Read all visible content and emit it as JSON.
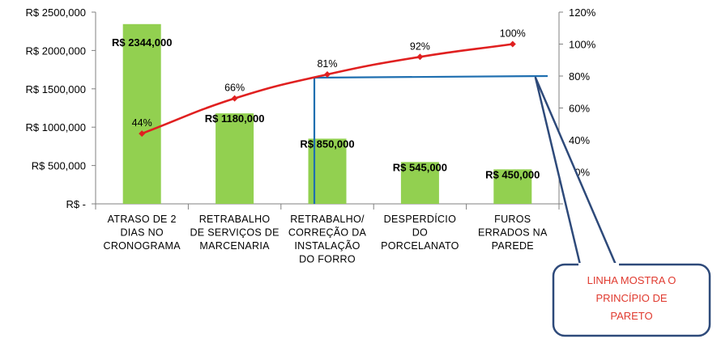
{
  "chart_data": {
    "type": "bar",
    "title": "",
    "xlabel": "",
    "ylabel": "",
    "categories": [
      [
        "ATRASO DE 2",
        "DIAS NO",
        "CRONOGRAMA"
      ],
      [
        "RETRABALHO",
        "DE SERVIÇOS DE",
        "MARCENARIA"
      ],
      [
        "RETRABALHO/",
        "CORREÇÃO DA",
        "INSTALAÇÃO",
        "DO FORRO"
      ],
      [
        "DESPERDÍCIO",
        "DO",
        "PORCELANATO"
      ],
      [
        "FUROS",
        "ERRADOS NA",
        "PAREDE"
      ]
    ],
    "series": [
      {
        "type": "bar",
        "values": [
          2344000,
          1180000,
          850000,
          545000,
          450000
        ],
        "data_labels": [
          "R$ 2344,000",
          "R$ 1180,000",
          "R$ 850,000",
          "R$ 545,000",
          "R$ 450,000"
        ],
        "color": "#92d050"
      },
      {
        "type": "line",
        "axis": "secondary",
        "values": [
          44,
          66,
          81,
          92,
          100
        ],
        "data_labels": [
          "44%",
          "66%",
          "81%",
          "92%",
          "100%"
        ],
        "color": "#e02020"
      }
    ],
    "pareto_line": {
      "value": 80,
      "color": "#1f6fb0"
    },
    "ylim": [
      0,
      2500000
    ],
    "y_ticks": [
      "R$ -",
      "R$ 500,000",
      "R$ 1000,000",
      "R$ 1500,000",
      "R$ 2000,000",
      "R$ 2500,000"
    ],
    "y2lim": [
      0,
      120
    ],
    "y2_ticks": [
      "0%",
      "20%",
      "40%",
      "60%",
      "80%",
      "100%",
      "120%"
    ],
    "grid": false,
    "legend": "none"
  },
  "callout": {
    "lines": [
      "LINHA MOSTRA O",
      "PRINCÍPIO DE",
      "PARETO"
    ],
    "text_color": "#e03a2f",
    "border_color": "#2e4a7a"
  }
}
